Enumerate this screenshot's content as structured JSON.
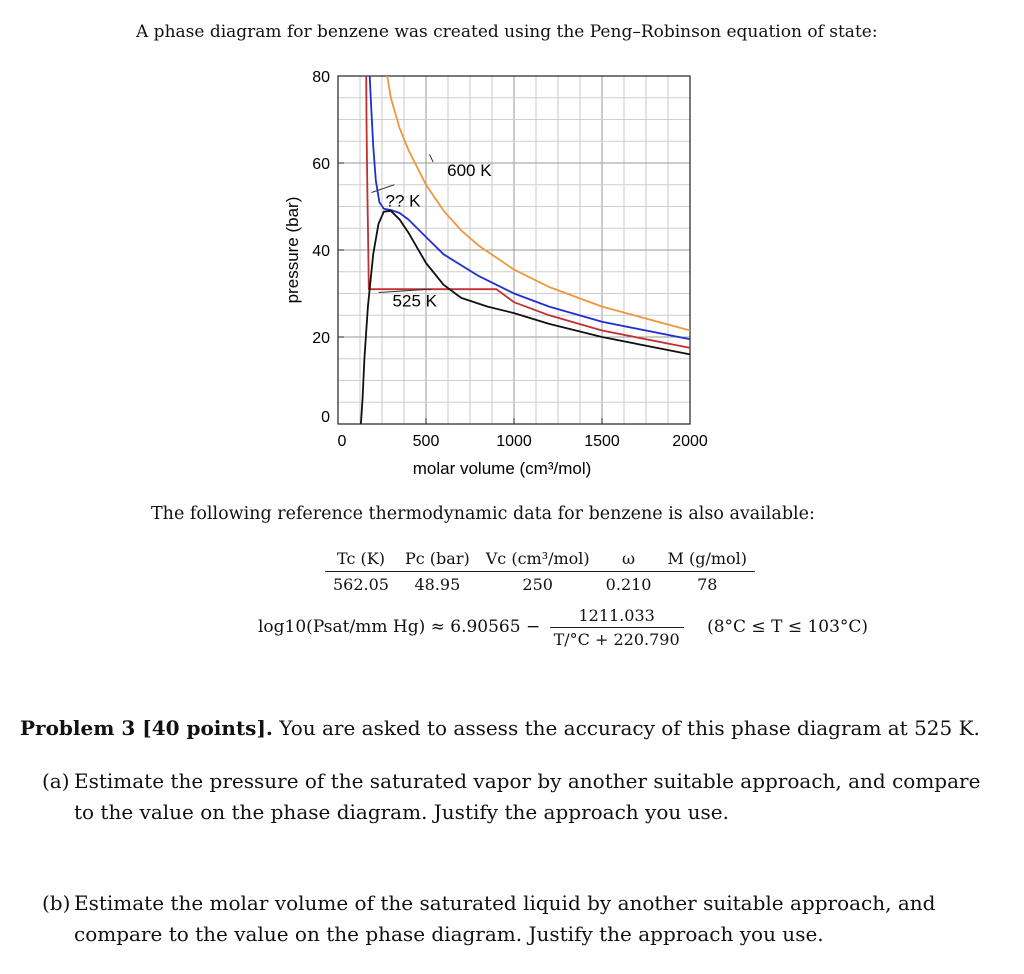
{
  "intro_text": "A phase diagram for benzene was created using the Peng–Robinson equation of state:",
  "chart_data": {
    "type": "line",
    "xlabel": "molar volume (cm³/mol)",
    "ylabel": "pressure (bar)",
    "xlim": [
      0,
      2000
    ],
    "ylim": [
      0,
      80
    ],
    "xticks": [
      "0",
      "500",
      "1000",
      "1500",
      "2000"
    ],
    "yticks": [
      "0",
      "20",
      "40",
      "60",
      "80"
    ],
    "grid": true,
    "annotations": [
      {
        "text": "600 K",
        "x": 620,
        "y": 57,
        "target_x": 520,
        "target_y": 62
      },
      {
        "text": "?? K",
        "x": 270,
        "y": 50,
        "target_x": 320,
        "target_y": 55
      },
      {
        "text": "525 K",
        "x": 310,
        "y": 27,
        "target_x": 530,
        "target_y": 31
      }
    ],
    "series": [
      {
        "name": "600 K",
        "color": "#f0963c",
        "points": [
          [
            280,
            80
          ],
          [
            300,
            75
          ],
          [
            350,
            68
          ],
          [
            400,
            63
          ],
          [
            500,
            55
          ],
          [
            600,
            49
          ],
          [
            700,
            44.5
          ],
          [
            800,
            41
          ],
          [
            1000,
            35.5
          ],
          [
            1200,
            31.5
          ],
          [
            1500,
            27
          ],
          [
            2000,
            21.5
          ]
        ]
      },
      {
        "name": "?? K",
        "color": "#2030d0",
        "points": [
          [
            180,
            80
          ],
          [
            190,
            72
          ],
          [
            200,
            64
          ],
          [
            215,
            56
          ],
          [
            235,
            51
          ],
          [
            260,
            49.5
          ],
          [
            300,
            49.2
          ],
          [
            350,
            48.5
          ],
          [
            400,
            47
          ],
          [
            500,
            43
          ],
          [
            600,
            39
          ],
          [
            800,
            34
          ],
          [
            1000,
            30
          ],
          [
            1200,
            27
          ],
          [
            1500,
            23.5
          ],
          [
            2000,
            19.5
          ]
        ]
      },
      {
        "name": "525 K",
        "color": "#c03030",
        "points": [
          [
            160,
            80
          ],
          [
            162,
            70
          ],
          [
            165,
            60
          ],
          [
            168,
            50
          ],
          [
            172,
            40
          ],
          [
            175,
            31
          ],
          [
            900,
            31
          ],
          [
            1000,
            28
          ],
          [
            1200,
            25
          ],
          [
            1500,
            21.5
          ],
          [
            2000,
            17.5
          ]
        ]
      },
      {
        "name": "black",
        "color": "#111111",
        "points": [
          [
            130,
            0
          ],
          [
            140,
            6
          ],
          [
            150,
            15
          ],
          [
            170,
            27
          ],
          [
            200,
            39
          ],
          [
            230,
            46
          ],
          [
            260,
            48.8
          ],
          [
            300,
            49
          ],
          [
            350,
            47
          ],
          [
            400,
            44
          ],
          [
            500,
            37
          ],
          [
            600,
            32
          ],
          [
            700,
            29
          ],
          [
            850,
            27
          ],
          [
            1000,
            25.5
          ],
          [
            1200,
            23
          ],
          [
            1500,
            20
          ],
          [
            2000,
            16
          ]
        ]
      }
    ]
  },
  "reference_text": "The following reference thermodynamic data for benzene is also available:",
  "table": {
    "headers": [
      "Tc (K)",
      "Pc (bar)",
      "Vc (cm³/mol)",
      "ω",
      "M (g/mol)"
    ],
    "values": [
      "562.05",
      "48.95",
      "250",
      "0.210",
      "78"
    ]
  },
  "equation": {
    "lhs": "log10(Psat/mm Hg) ≈ 6.90565 −",
    "numerator": "1211.033",
    "denominator": "T/°C + 220.790",
    "range": "(8°C ≤ T ≤ 103°C)"
  },
  "problem": {
    "header": "Problem 3 [40 points].",
    "intro": "You are asked to assess the accuracy of this phase diagram at 525 K.",
    "parts": [
      {
        "label": "(a)",
        "text": "Estimate the pressure of the saturated vapor by another suitable approach, and compare to the value on the phase diagram. Justify the approach you use."
      },
      {
        "label": "(b)",
        "text": "Estimate the molar volume of the saturated liquid by another suitable approach, and compare to the value on the phase diagram. Justify the approach you use."
      }
    ]
  }
}
